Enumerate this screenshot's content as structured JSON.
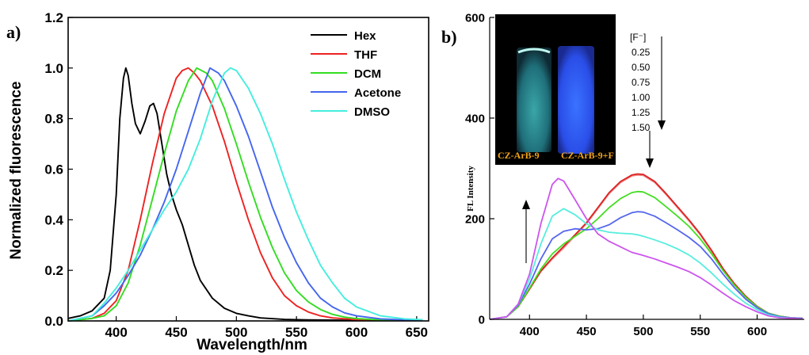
{
  "panel_a": {
    "label": "a)",
    "chart_data": {
      "type": "line",
      "title": "",
      "xlabel": "Wavelength/nm",
      "ylabel": "Normalized fluorescence",
      "xlim": [
        360,
        660
      ],
      "ylim": [
        0,
        1.2
      ],
      "xticks": [
        400,
        450,
        500,
        550,
        600,
        650
      ],
      "yticks": [
        0.0,
        0.2,
        0.4,
        0.6,
        0.8,
        1.0,
        1.2
      ],
      "legend": "top-right",
      "grid": false,
      "series": [
        {
          "name": "Hex",
          "color": "#000000",
          "x": [
            360,
            370,
            380,
            390,
            395,
            400,
            403,
            406,
            408,
            410,
            413,
            416,
            420,
            424,
            428,
            431,
            434,
            438,
            442,
            446,
            450,
            455,
            460,
            465,
            470,
            480,
            490,
            500,
            510,
            520,
            540,
            560,
            580,
            600,
            620,
            640,
            655
          ],
          "y": [
            0.01,
            0.02,
            0.04,
            0.09,
            0.2,
            0.5,
            0.8,
            0.96,
            1.0,
            0.97,
            0.86,
            0.78,
            0.74,
            0.79,
            0.85,
            0.86,
            0.82,
            0.7,
            0.58,
            0.5,
            0.44,
            0.38,
            0.3,
            0.22,
            0.16,
            0.09,
            0.05,
            0.03,
            0.02,
            0.012,
            0.006,
            0.004,
            0.003,
            0.002,
            0.002,
            0.002,
            0.002
          ]
        },
        {
          "name": "THF",
          "color": "#ee2222",
          "x": [
            360,
            380,
            390,
            400,
            410,
            420,
            430,
            440,
            450,
            455,
            460,
            465,
            470,
            480,
            490,
            500,
            510,
            520,
            530,
            540,
            550,
            560,
            570,
            580,
            600,
            620,
            640,
            655
          ],
          "y": [
            0.0,
            0.01,
            0.03,
            0.08,
            0.2,
            0.4,
            0.62,
            0.82,
            0.96,
            0.99,
            1.0,
            0.98,
            0.95,
            0.85,
            0.71,
            0.55,
            0.4,
            0.27,
            0.17,
            0.1,
            0.06,
            0.035,
            0.02,
            0.012,
            0.005,
            0.003,
            0.002,
            0.002
          ]
        },
        {
          "name": "DCM",
          "color": "#33dd22",
          "x": [
            360,
            380,
            390,
            400,
            410,
            420,
            430,
            440,
            450,
            460,
            467,
            475,
            480,
            490,
            500,
            510,
            520,
            530,
            540,
            550,
            560,
            570,
            580,
            590,
            600,
            620,
            640,
            655
          ],
          "y": [
            0.0,
            0.01,
            0.02,
            0.06,
            0.15,
            0.3,
            0.48,
            0.66,
            0.83,
            0.95,
            1.0,
            0.98,
            0.95,
            0.84,
            0.7,
            0.55,
            0.41,
            0.29,
            0.19,
            0.12,
            0.075,
            0.045,
            0.026,
            0.015,
            0.009,
            0.004,
            0.003,
            0.002
          ]
        },
        {
          "name": "Acetone",
          "color": "#4466ee",
          "x": [
            360,
            380,
            390,
            400,
            410,
            420,
            430,
            440,
            450,
            460,
            470,
            478,
            485,
            490,
            500,
            510,
            520,
            530,
            540,
            550,
            560,
            570,
            580,
            590,
            600,
            620,
            640,
            655
          ],
          "y": [
            0.0,
            0.02,
            0.06,
            0.11,
            0.18,
            0.26,
            0.36,
            0.47,
            0.6,
            0.75,
            0.9,
            1.0,
            0.98,
            0.95,
            0.85,
            0.73,
            0.59,
            0.45,
            0.33,
            0.23,
            0.15,
            0.09,
            0.055,
            0.032,
            0.02,
            0.008,
            0.004,
            0.003
          ]
        },
        {
          "name": "DMSO",
          "color": "#44eedd",
          "x": [
            360,
            380,
            390,
            400,
            410,
            420,
            430,
            440,
            450,
            460,
            470,
            480,
            490,
            495,
            500,
            510,
            520,
            530,
            540,
            550,
            560,
            570,
            580,
            590,
            600,
            620,
            640,
            655
          ],
          "y": [
            0.0,
            0.02,
            0.07,
            0.13,
            0.2,
            0.28,
            0.36,
            0.44,
            0.51,
            0.6,
            0.72,
            0.87,
            0.98,
            1.0,
            0.99,
            0.92,
            0.82,
            0.7,
            0.56,
            0.43,
            0.32,
            0.22,
            0.15,
            0.09,
            0.055,
            0.02,
            0.008,
            0.005
          ]
        }
      ]
    }
  },
  "panel_b": {
    "label": "b)",
    "chart_data": {
      "type": "line",
      "title": "",
      "xlabel": "",
      "ylabel": "FL Intensity",
      "xlim": [
        365,
        640
      ],
      "ylim": [
        0,
        600
      ],
      "xticks": [
        400,
        450,
        500,
        550,
        600
      ],
      "yticks": [
        0,
        200,
        400,
        600
      ],
      "legend": "top",
      "grid": false,
      "legend_title": "[F⁻]",
      "legend_values": [
        "0.25",
        "0.50",
        "0.75",
        "1.00",
        "1.25",
        "1.50"
      ],
      "photo_labels": [
        "CZ-ArB-9",
        "CZ-ArB-9+F"
      ],
      "series": [
        {
          "color": "#ee8888",
          "x": [
            365,
            380,
            390,
            400,
            410,
            420,
            430,
            440,
            450,
            460,
            470,
            480,
            490,
            495,
            500,
            510,
            520,
            530,
            540,
            550,
            560,
            570,
            580,
            590,
            600,
            610,
            620,
            630,
            640
          ],
          "y": [
            0,
            5,
            25,
            60,
            95,
            120,
            142,
            166,
            190,
            220,
            250,
            272,
            285,
            287,
            286,
            272,
            248,
            222,
            196,
            168,
            135,
            100,
            70,
            45,
            25,
            12,
            6,
            3,
            2
          ]
        },
        {
          "color": "#dd2222",
          "x": [
            365,
            380,
            390,
            400,
            410,
            420,
            430,
            440,
            450,
            460,
            470,
            480,
            490,
            495,
            500,
            510,
            520,
            530,
            540,
            550,
            560,
            570,
            580,
            590,
            600,
            610,
            620,
            630,
            640
          ],
          "y": [
            0,
            5,
            25,
            60,
            96,
            122,
            145,
            168,
            192,
            222,
            252,
            274,
            287,
            289,
            288,
            274,
            250,
            224,
            198,
            170,
            137,
            101,
            71,
            46,
            26,
            12,
            6,
            3,
            2
          ]
        },
        {
          "color": "#44dd22",
          "x": [
            365,
            380,
            390,
            400,
            410,
            420,
            430,
            440,
            450,
            460,
            470,
            480,
            490,
            495,
            500,
            510,
            520,
            530,
            540,
            550,
            560,
            570,
            580,
            590,
            600,
            610,
            620,
            630,
            640
          ],
          "y": [
            0,
            5,
            25,
            62,
            100,
            130,
            150,
            165,
            180,
            200,
            222,
            240,
            252,
            254,
            253,
            242,
            224,
            205,
            185,
            160,
            130,
            97,
            68,
            44,
            25,
            12,
            6,
            3,
            2
          ]
        },
        {
          "color": "#5566ee",
          "x": [
            365,
            380,
            390,
            400,
            410,
            420,
            430,
            440,
            450,
            460,
            470,
            480,
            490,
            495,
            500,
            510,
            520,
            530,
            540,
            550,
            560,
            570,
            580,
            590,
            600,
            610,
            620,
            630,
            640
          ],
          "y": [
            0,
            5,
            28,
            70,
            120,
            160,
            175,
            180,
            178,
            180,
            188,
            202,
            212,
            214,
            213,
            205,
            192,
            178,
            163,
            145,
            120,
            90,
            63,
            40,
            23,
            11,
            5,
            3,
            2
          ]
        },
        {
          "color": "#55eedd",
          "x": [
            365,
            380,
            390,
            400,
            410,
            420,
            430,
            440,
            450,
            460,
            470,
            480,
            490,
            495,
            500,
            510,
            520,
            530,
            540,
            550,
            560,
            570,
            580,
            590,
            600,
            610,
            620,
            630,
            640
          ],
          "y": [
            0,
            5,
            30,
            80,
            150,
            205,
            220,
            208,
            190,
            178,
            173,
            171,
            170,
            168,
            165,
            158,
            150,
            140,
            128,
            112,
            92,
            70,
            50,
            32,
            19,
            9,
            4,
            2,
            1
          ]
        },
        {
          "color": "#cc55ee",
          "x": [
            365,
            380,
            390,
            400,
            410,
            420,
            425,
            430,
            440,
            450,
            460,
            470,
            480,
            490,
            495,
            500,
            510,
            520,
            530,
            540,
            550,
            560,
            570,
            580,
            590,
            600,
            610,
            620,
            630,
            640
          ],
          "y": [
            0,
            5,
            30,
            90,
            190,
            268,
            280,
            275,
            238,
            200,
            170,
            155,
            144,
            133,
            130,
            127,
            120,
            112,
            104,
            95,
            83,
            68,
            52,
            37,
            25,
            15,
            7,
            3,
            2,
            1
          ]
        }
      ]
    }
  }
}
